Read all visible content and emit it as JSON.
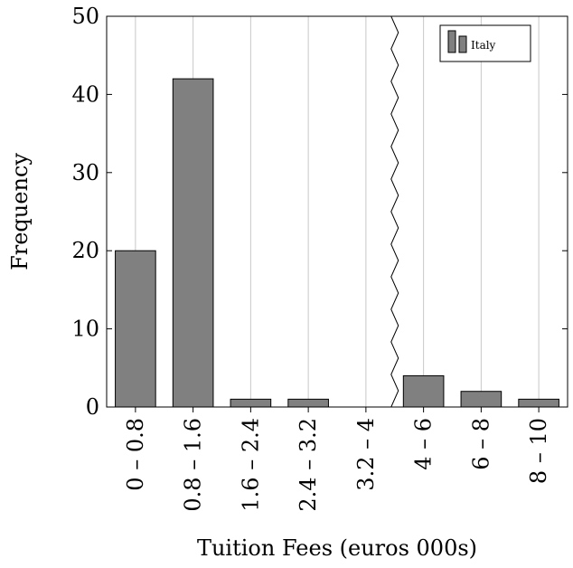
{
  "chart_data": {
    "type": "bar",
    "categories": [
      "0 – 0.8",
      "0.8 – 1.6",
      "1.6 – 2.4",
      "2.4 – 3.2",
      "3.2 – 4",
      "4 – 6",
      "6 – 8",
      "8 – 10"
    ],
    "series": [
      {
        "name": "Italy",
        "values": [
          20,
          42,
          1,
          1,
          0,
          4,
          2,
          1
        ],
        "color": "#808080"
      }
    ],
    "xlabel": "Tuition Fees (euros 000s)",
    "ylabel": "Frequency",
    "ylim": [
      0,
      50
    ],
    "yticks": [
      0,
      10,
      20,
      30,
      40,
      50
    ],
    "grid": "vertical",
    "legend_position": "top-right",
    "axis_break": "between 3.2 – 4 and 4 – 6"
  }
}
